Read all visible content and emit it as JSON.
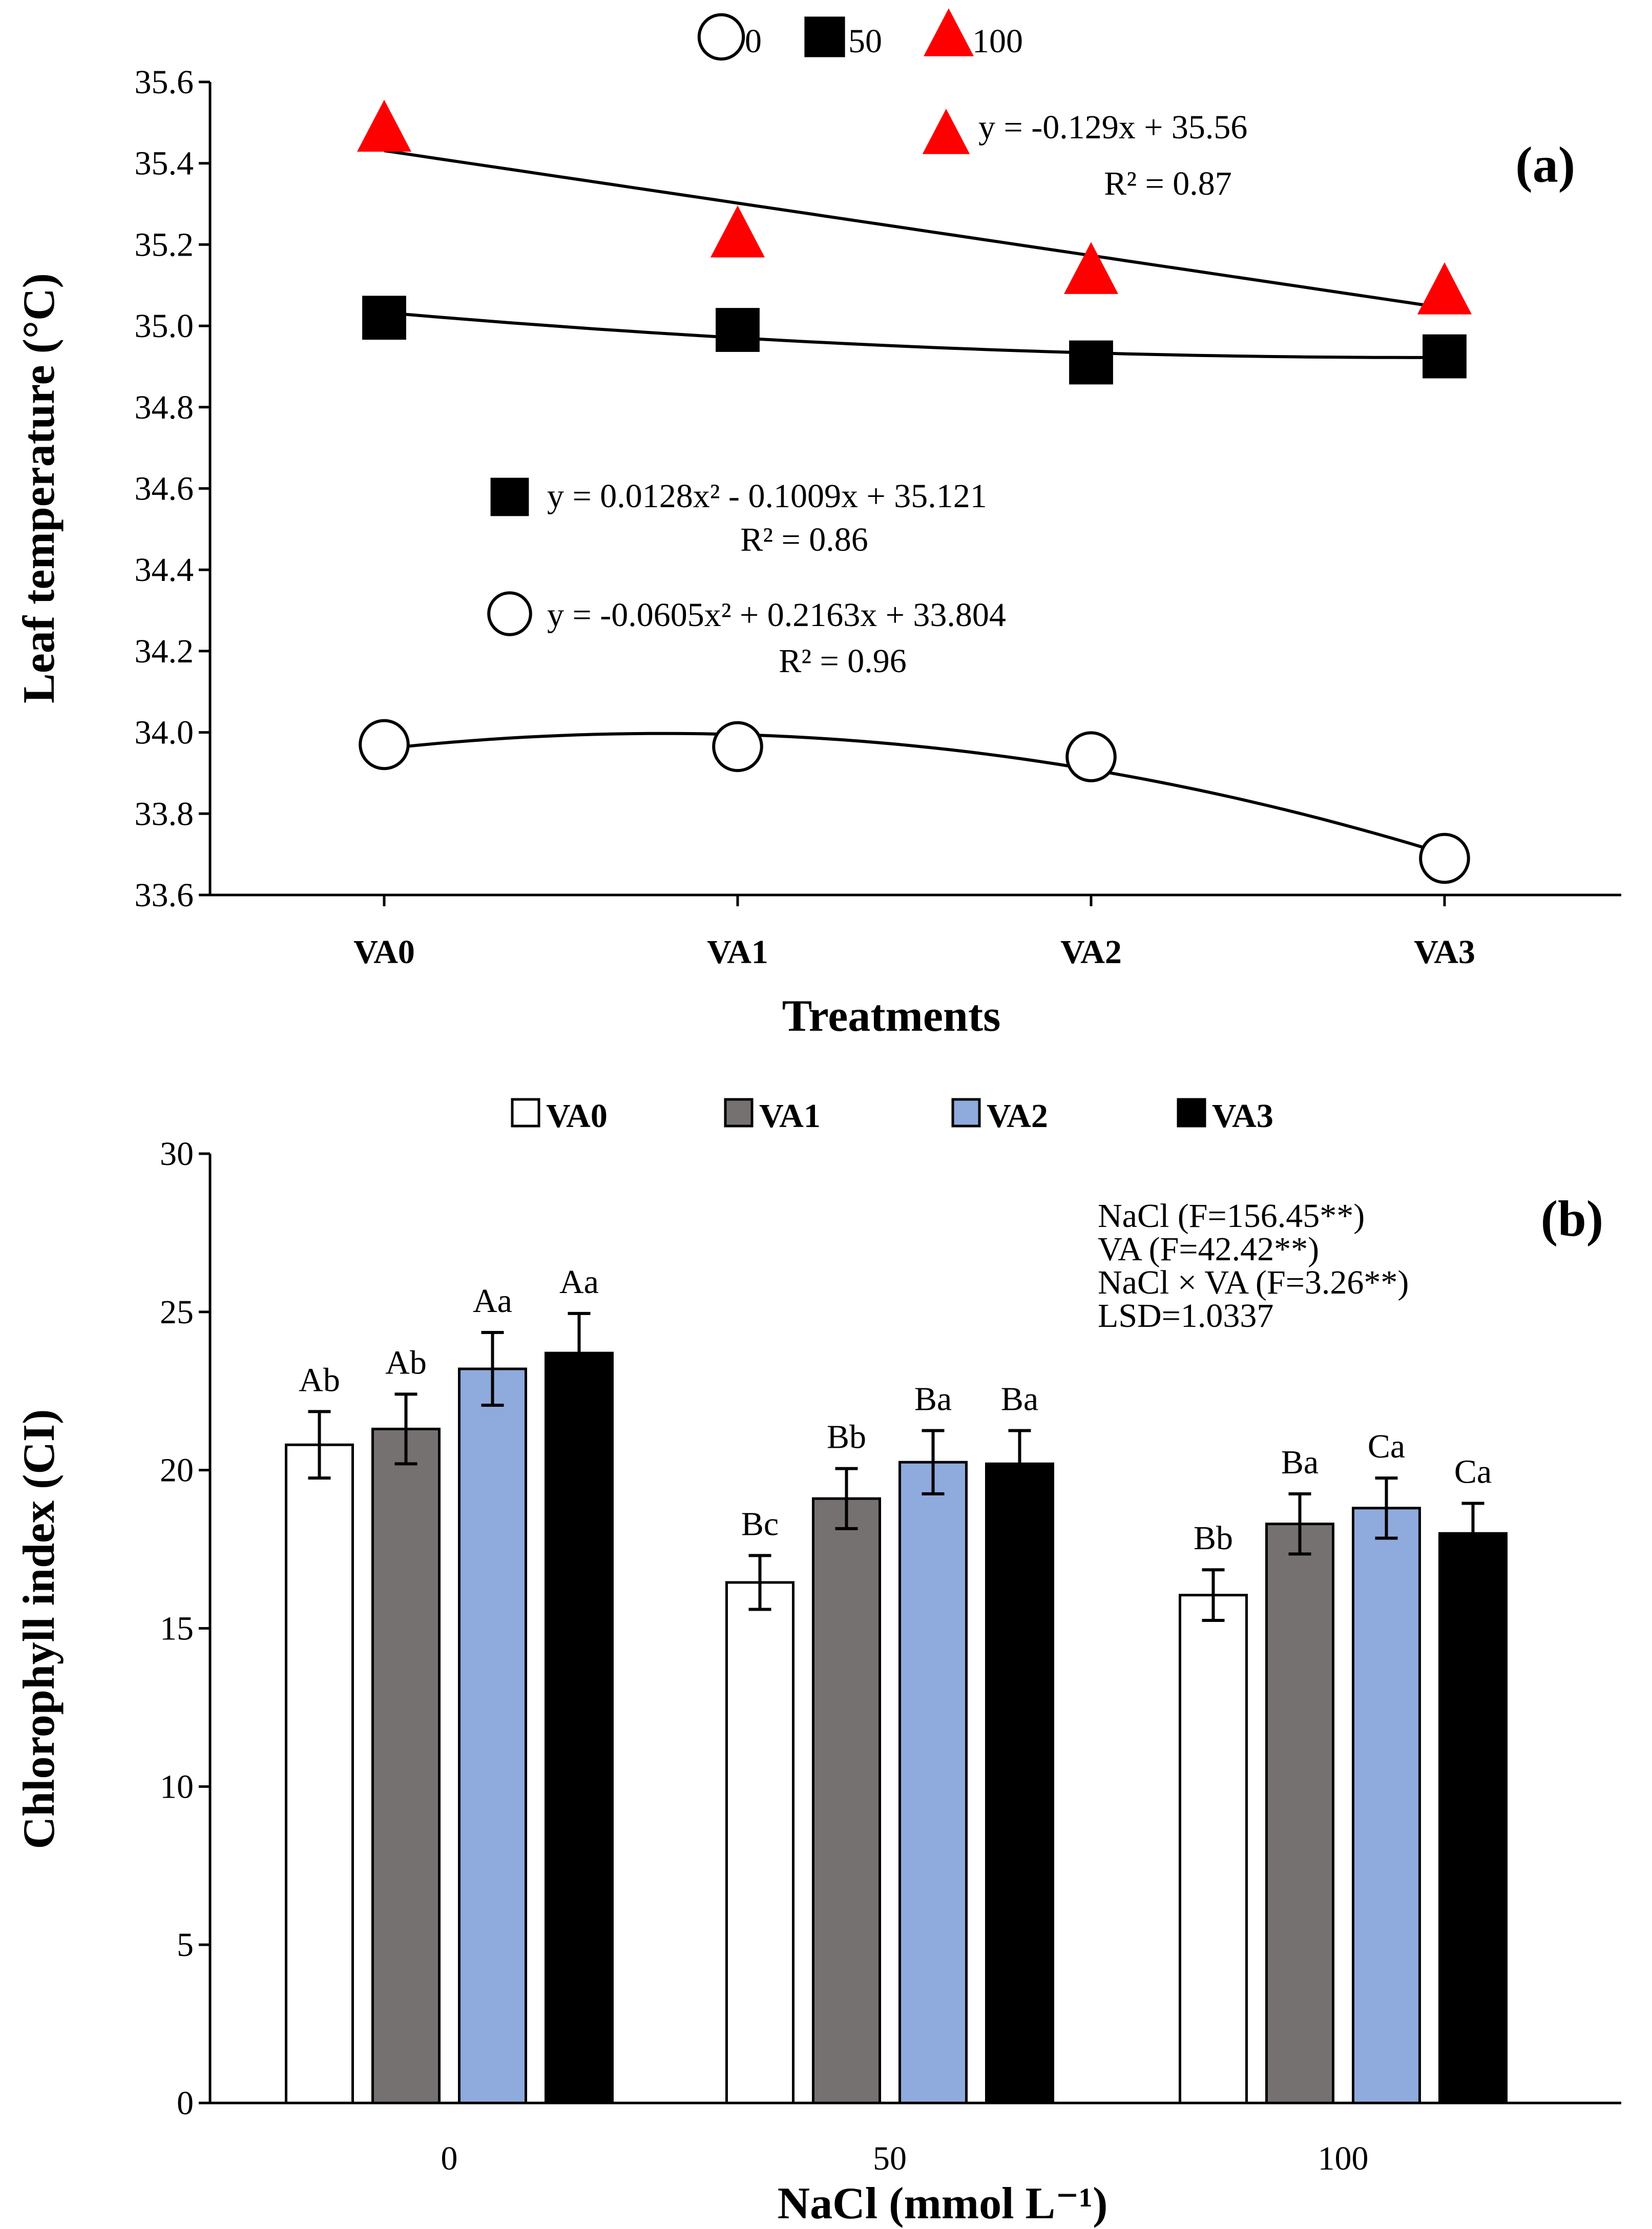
{
  "chart_data": [
    {
      "panel": "(a)",
      "type": "scatter",
      "ylabel": "Leaf temperature (°C)",
      "xlabel": "Treatments",
      "categories": [
        "VA0",
        "VA1",
        "VA2",
        "VA3"
      ],
      "ylim": [
        33.6,
        35.6
      ],
      "ytick_step": 0.2,
      "legend_position": "top-center",
      "series": [
        {
          "name": "0",
          "marker": "circle",
          "color": "#000000",
          "values": [
            33.97,
            33.965,
            33.94,
            33.69
          ],
          "trend": {
            "type": "poly2",
            "coef": [
              -0.0605,
              0.2163,
              33.804
            ]
          },
          "equation": "y = -0.0605x² + 0.2163x + 33.804",
          "r2": "R² = 0.96"
        },
        {
          "name": "50",
          "marker": "square",
          "color": "#000000",
          "values": [
            35.02,
            34.99,
            34.91,
            34.925
          ],
          "trend": {
            "type": "poly2",
            "coef": [
              0.0128,
              -0.1009,
              35.121
            ]
          },
          "equation": "y = 0.0128x² - 0.1009x + 35.121",
          "r2": "R² = 0.86"
        },
        {
          "name": "100",
          "marker": "triangle",
          "color": "#ff0000",
          "values": [
            35.48,
            35.22,
            35.13,
            35.08
          ],
          "trend": {
            "type": "linear",
            "coef": [
              -0.129,
              35.56
            ]
          },
          "equation": "y = -0.129x + 35.56",
          "r2": "R² = 0.87"
        }
      ]
    },
    {
      "panel": "(b)",
      "type": "bar",
      "ylabel": "Chlorophyll index (CI)",
      "xlabel": "NaCl (mmol L⁻¹)",
      "categories": [
        "0",
        "50",
        "100"
      ],
      "ylim": [
        0,
        30
      ],
      "ytick_step": 5,
      "legend_position": "top-center",
      "series": [
        {
          "name": "VA0",
          "color": "#ffffff",
          "values": [
            20.8,
            16.45,
            16.05
          ],
          "errors": [
            1.05,
            0.85,
            0.8
          ],
          "labels": [
            "Ab",
            "Bc",
            "Bb"
          ]
        },
        {
          "name": "VA1",
          "color": "#767171",
          "values": [
            21.3,
            19.1,
            18.3
          ],
          "errors": [
            1.1,
            0.95,
            0.95
          ],
          "labels": [
            "Ab",
            "Bb",
            "Ba"
          ]
        },
        {
          "name": "VA2",
          "color": "#8faadc",
          "values": [
            23.2,
            20.25,
            18.8
          ],
          "errors": [
            1.15,
            1.0,
            0.95
          ],
          "labels": [
            "Aa",
            "Ba",
            "Ca"
          ]
        },
        {
          "name": "VA3",
          "color": "#000000",
          "values": [
            23.7,
            20.2,
            18.0
          ],
          "errors": [
            1.25,
            1.05,
            0.95
          ],
          "labels": [
            "Aa",
            "Ba",
            "Ca"
          ]
        }
      ],
      "stats": [
        "NaCl (F=156.45**)",
        "VA (F=42.42**)",
        "NaCl × VA (F=3.26**)",
        "LSD=1.0337"
      ]
    }
  ]
}
